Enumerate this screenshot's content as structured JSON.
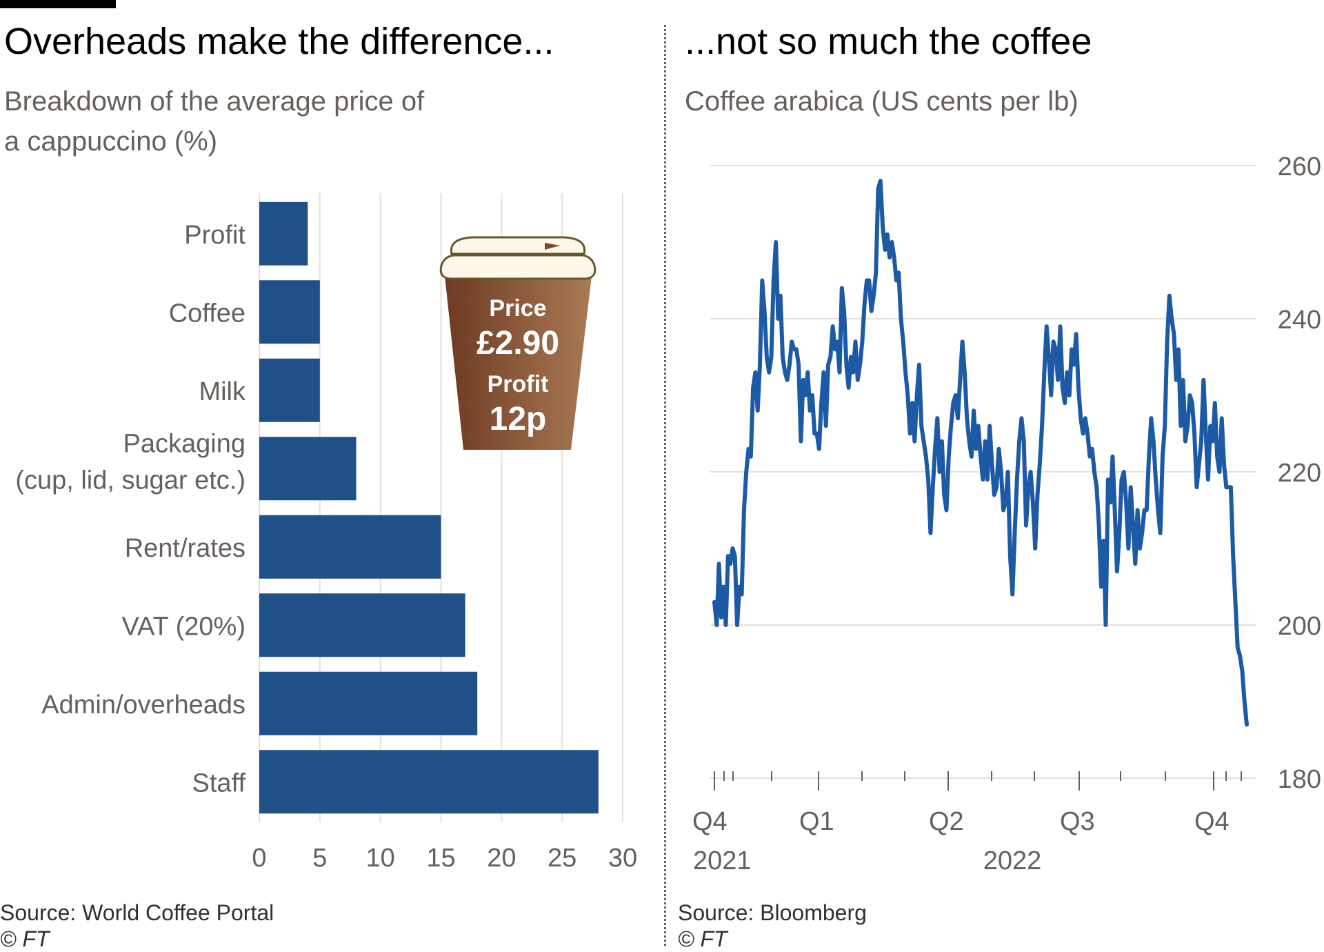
{
  "left": {
    "title": "Overheads make the difference...",
    "subtitle_line1": "Breakdown of the average price of",
    "subtitle_line2": "a cappuccino (%)",
    "source": "Source: World Coffee Portal",
    "copyright": "© FT",
    "cup": {
      "price_label": "Price",
      "price_value": "£2.90",
      "profit_label": "Profit",
      "profit_value": "12p"
    }
  },
  "right": {
    "title": "...not so much the coffee",
    "subtitle": "Coffee arabica (US cents per lb)",
    "source": "Source: Bloomberg",
    "copyright": "© FT"
  },
  "colors": {
    "bar": "#205088",
    "line": "#1d5aa6",
    "grid": "#e8dfd6",
    "cup_dark": "#6e3a22",
    "cup_light": "#a87a55",
    "lid": "#fdf7ea"
  },
  "chart_data": [
    {
      "type": "bar",
      "orientation": "horizontal",
      "categories": [
        "Profit",
        "Coffee",
        "Milk",
        "Packaging\n(cup, lid, sugar etc.)",
        "Rent/rates",
        "VAT (20%)",
        "Admin/overheads",
        "Staff"
      ],
      "values": [
        4,
        5,
        5,
        8,
        15,
        17,
        18,
        28
      ],
      "xlim": [
        0,
        30
      ],
      "xticks": [
        0,
        5,
        10,
        15,
        20,
        25,
        30
      ],
      "grid": true
    },
    {
      "type": "line",
      "series": [
        {
          "values": [
            203,
            200,
            208,
            201,
            205,
            200,
            209,
            208,
            210,
            209,
            200,
            205,
            204,
            215,
            220,
            223,
            222,
            231,
            233,
            228,
            234,
            245,
            241,
            235,
            233,
            235,
            245,
            250,
            240,
            243,
            235,
            233,
            232,
            234,
            237,
            236,
            236,
            234,
            224,
            232,
            230,
            233,
            228,
            230,
            225,
            225,
            223,
            229,
            233,
            226,
            234,
            235,
            239,
            236,
            237,
            233,
            244,
            241,
            234,
            231,
            235,
            233,
            237,
            232,
            234,
            237,
            242,
            245,
            245,
            241,
            243,
            246,
            257,
            258,
            252,
            249,
            251,
            248,
            250,
            248,
            245,
            246,
            240,
            237,
            233,
            230,
            225,
            229,
            224,
            230,
            234,
            226,
            224,
            222,
            219,
            212,
            218,
            223,
            227,
            220,
            224,
            217,
            215,
            222,
            226,
            229,
            230,
            227,
            232,
            237,
            233,
            227,
            224,
            222,
            228,
            223,
            226,
            222,
            219,
            224,
            219,
            226,
            221,
            217,
            218,
            223,
            220,
            215,
            216,
            220,
            209,
            204,
            212,
            219,
            224,
            227,
            224,
            213,
            218,
            220,
            216,
            210,
            217,
            221,
            226,
            233,
            239,
            235,
            230,
            237,
            236,
            232,
            239,
            231,
            229,
            233,
            230,
            236,
            234,
            238,
            231,
            227,
            225,
            227,
            225,
            222,
            223,
            220,
            218,
            213,
            205,
            211,
            200,
            219,
            216,
            222,
            215,
            207,
            212,
            219,
            220,
            216,
            210,
            218,
            213,
            208,
            215,
            210,
            212,
            215,
            215,
            222,
            227,
            224,
            219,
            215,
            212,
            222,
            226,
            237,
            243,
            240,
            238,
            232,
            236,
            226,
            232,
            224,
            226,
            230,
            229,
            225,
            218,
            221,
            224,
            232,
            225,
            219,
            226,
            224,
            229,
            222,
            220,
            227,
            221,
            218,
            218,
            218,
            209,
            203,
            197,
            196,
            194,
            190,
            187
          ]
        }
      ],
      "x_range": [
        "2021-Q4",
        "2022-Q4"
      ],
      "xticks_labels": [
        "Q4",
        "Q1",
        "Q2",
        "Q3",
        "Q4"
      ],
      "year_labels": [
        "2021",
        "2022"
      ],
      "ylim": [
        180,
        260
      ],
      "yticks": [
        180,
        200,
        220,
        240,
        260
      ],
      "grid": true,
      "yaxis_side": "right"
    }
  ]
}
